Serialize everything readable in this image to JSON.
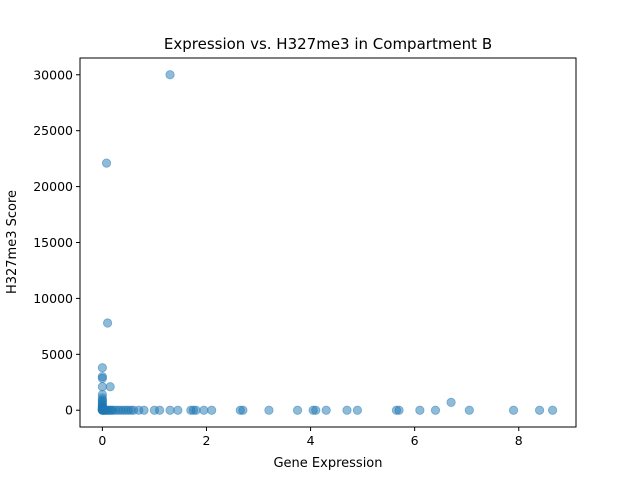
{
  "chart_data": {
    "type": "scatter",
    "title": "Expression vs. H327me3 in Compartment B",
    "xlabel": "Gene Expression",
    "ylabel": "H327me3 Score",
    "xlim": [
      -0.43,
      9.1
    ],
    "ylim": [
      -1500,
      31500
    ],
    "xticks": [
      0,
      2,
      4,
      6,
      8
    ],
    "yticks": [
      0,
      5000,
      10000,
      15000,
      20000,
      25000,
      30000
    ],
    "grid": false,
    "legend": "none",
    "marker_color": "#1f77b4",
    "marker_alpha": 0.5,
    "series": [
      {
        "x": [
          1.3,
          0.08,
          0.1,
          0.0,
          0.0,
          0.0,
          0.0,
          0.15,
          0.0,
          0.0,
          0.0,
          0.0,
          0.0,
          0.0,
          0.0,
          0.0,
          0.0,
          0.0,
          0.0,
          0.0,
          0.0,
          0.0,
          0.0,
          0.0,
          0.0,
          0.0,
          0.02,
          0.03,
          0.05,
          0.07,
          0.1,
          0.12,
          0.15,
          0.18,
          0.2,
          0.25,
          0.3,
          0.35,
          0.4,
          0.45,
          0.5,
          0.55,
          0.6,
          0.7,
          0.8,
          1.0,
          1.1,
          1.3,
          1.45,
          1.7,
          1.75,
          1.8,
          1.95,
          2.1,
          2.65,
          2.7,
          3.2,
          3.75,
          4.05,
          4.1,
          4.3,
          4.7,
          4.9,
          5.65,
          5.7,
          6.1,
          6.4,
          6.7,
          7.05,
          7.9,
          8.4,
          8.65
        ],
        "y": [
          30000,
          22100,
          7800,
          3800,
          3000,
          2850,
          2100,
          2100,
          1400,
          1100,
          900,
          800,
          650,
          500,
          400,
          300,
          250,
          200,
          150,
          100,
          80,
          50,
          30,
          20,
          10,
          5,
          0,
          0,
          0,
          0,
          0,
          0,
          0,
          0,
          0,
          0,
          0,
          0,
          0,
          0,
          0,
          0,
          0,
          0,
          0,
          0,
          0,
          0,
          0,
          0,
          0,
          0,
          0,
          0,
          0,
          0,
          0,
          0,
          0,
          0,
          0,
          0,
          0,
          0,
          0,
          0,
          0,
          700,
          0,
          0,
          0,
          0
        ]
      }
    ]
  }
}
